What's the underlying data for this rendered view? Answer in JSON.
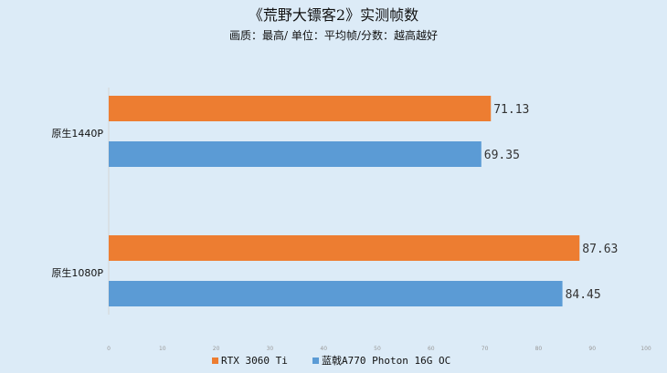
{
  "chart_data": {
    "type": "bar",
    "orientation": "horizontal",
    "title": "《荒野大镖客2》实测帧数",
    "subtitle": "画质：最高/ 单位：平均帧/分数：越高越好",
    "categories": [
      "原生1440P",
      "原生1080P"
    ],
    "series": [
      {
        "name": "RTX 3060 Ti",
        "color": "#ed7d31",
        "values": [
          71.13,
          87.63
        ]
      },
      {
        "name": "蓝戟A770 Photon 16G OC",
        "color": "#5b9bd5",
        "values": [
          69.35,
          84.45
        ]
      }
    ],
    "value_labels": [
      [
        "71.13",
        "87.63"
      ],
      [
        "69.35",
        "84.45"
      ]
    ],
    "xlim": [
      0,
      100
    ],
    "xticks": [
      0,
      10,
      20,
      30,
      40,
      50,
      60,
      70,
      80,
      90,
      100
    ],
    "grid": false,
    "legend_position": "bottom"
  }
}
